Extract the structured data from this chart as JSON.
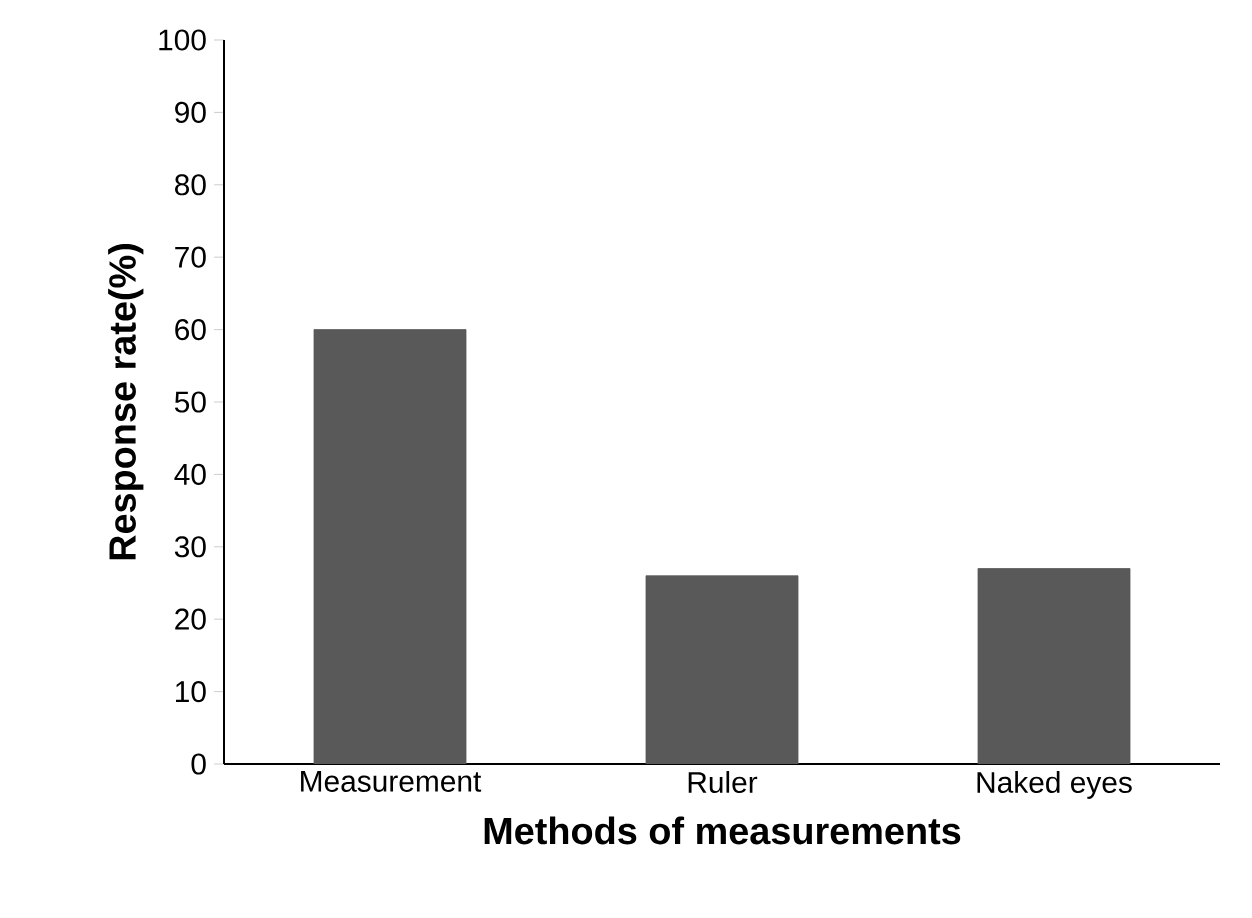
{
  "chart_data": {
    "type": "bar",
    "xlabel": "Methods of measurements",
    "ylabel": "Response rate(%)",
    "categories": [
      "Measurement",
      "Ruler",
      "Naked eyes"
    ],
    "values": [
      60,
      26,
      27
    ],
    "color": "#595959",
    "ylim": [
      0,
      100
    ],
    "yticks": [
      0,
      10,
      20,
      30,
      40,
      50,
      60,
      70,
      80,
      90,
      100
    ],
    "grid": false
  }
}
